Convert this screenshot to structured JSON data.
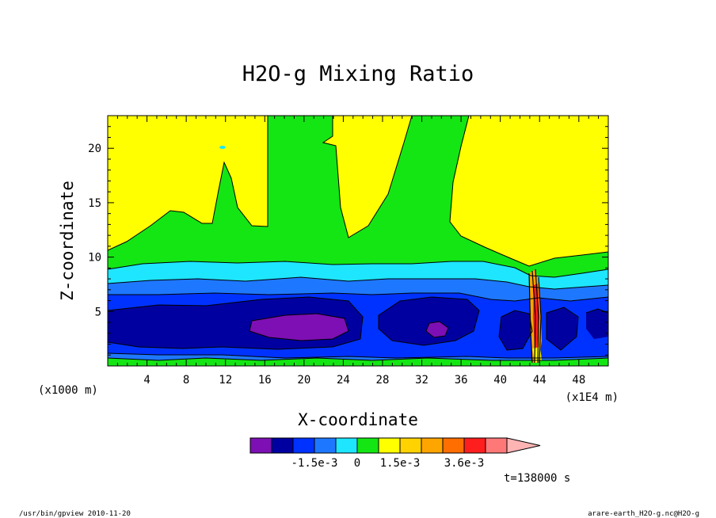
{
  "chart_data": {
    "type": "heatmap",
    "title": "H2O-g Mixing Ratio",
    "xlabel": "X-coordinate",
    "ylabel": "Z-coordinate",
    "x_units_left": "(x1000 m)",
    "x_units_right": "(x1E4 m)",
    "xlim": [
      0,
      51
    ],
    "ylim": [
      0,
      23
    ],
    "x_ticks": [
      "4",
      "8",
      "12",
      "16",
      "20",
      "24",
      "28",
      "32",
      "36",
      "40",
      "44",
      "48"
    ],
    "x_tick_values": [
      4,
      8,
      12,
      16,
      20,
      24,
      28,
      32,
      36,
      40,
      44,
      48
    ],
    "y_ticks": [
      "5",
      "10",
      "15",
      "20"
    ],
    "y_tick_values": [
      5,
      10,
      15,
      20
    ],
    "colorbar": {
      "colors": [
        "#7d0fb4",
        "#0000a0",
        "#0032ff",
        "#1e78ff",
        "#1ee6ff",
        "#14e614",
        "#ffff00",
        "#ffd200",
        "#ffa500",
        "#ff6e00",
        "#ff1e1e",
        "#ff7878",
        "#ffb4b4"
      ],
      "labels": [
        "-1.5e-3",
        "0",
        "1.5e-3",
        "3.6e-3"
      ],
      "label_after_box": [
        3,
        5,
        7,
        10
      ]
    },
    "time_label": "t=138000 s",
    "footer_left": "/usr/bin/gpview  2010-11-20",
    "footer_right": "arare-earth_H2O-g.nc@H2O-g"
  }
}
